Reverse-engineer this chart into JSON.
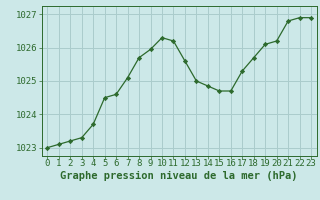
{
  "x": [
    0,
    1,
    2,
    3,
    4,
    5,
    6,
    7,
    8,
    9,
    10,
    11,
    12,
    13,
    14,
    15,
    16,
    17,
    18,
    19,
    20,
    21,
    22,
    23
  ],
  "y": [
    1023.0,
    1023.1,
    1023.2,
    1023.3,
    1023.7,
    1024.5,
    1024.6,
    1025.1,
    1025.7,
    1025.95,
    1026.3,
    1026.2,
    1025.6,
    1025.0,
    1024.85,
    1024.7,
    1024.7,
    1025.3,
    1025.7,
    1026.1,
    1026.2,
    1026.8,
    1026.9,
    1026.9
  ],
  "line_color": "#2d6a2d",
  "marker_color": "#2d6a2d",
  "bg_color": "#cce8e8",
  "grid_color": "#aacccc",
  "axis_color": "#2d6a2d",
  "label_color": "#2d6a2d",
  "xlabel": "Graphe pression niveau de la mer (hPa)",
  "ylim": [
    1022.75,
    1027.25
  ],
  "yticks": [
    1023,
    1024,
    1025,
    1026,
    1027
  ],
  "xticks": [
    0,
    1,
    2,
    3,
    4,
    5,
    6,
    7,
    8,
    9,
    10,
    11,
    12,
    13,
    14,
    15,
    16,
    17,
    18,
    19,
    20,
    21,
    22,
    23
  ],
  "tick_fontsize": 6.5,
  "xlabel_fontsize": 7.5
}
